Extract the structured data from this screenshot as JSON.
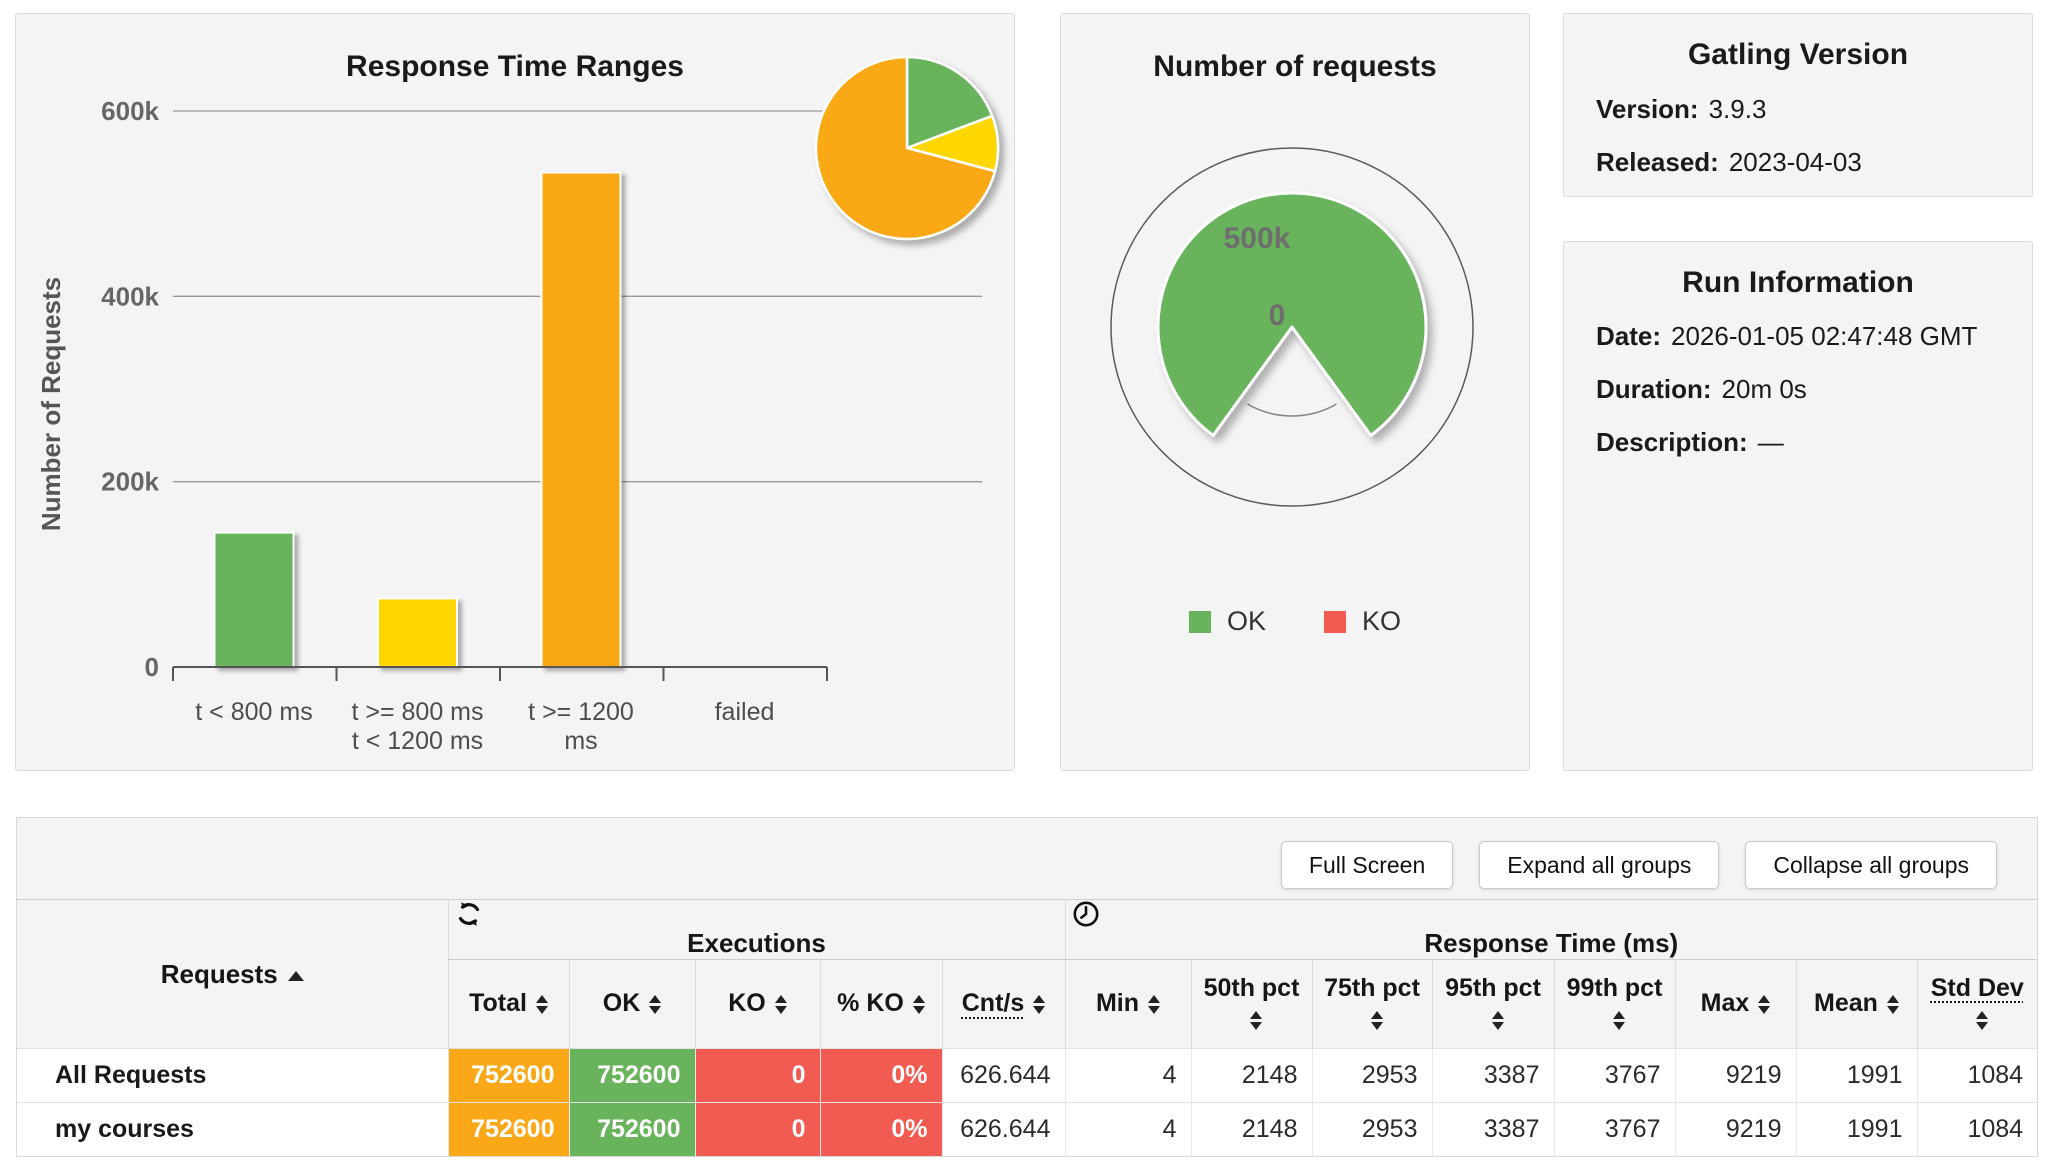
{
  "colors": {
    "green": "#6ab35d",
    "yellow": "#ffd705",
    "orange": "#fba818",
    "red": "#f15b52",
    "grid": "#9a9a9a",
    "axis": "#555555"
  },
  "chart_data": [
    {
      "type": "bar",
      "title": "Response Time Ranges",
      "ylabel": "Number of Requests",
      "categories": [
        "t < 800 ms",
        "t >= 800 ms\nt < 1200 ms",
        "t >= 1200\nms",
        "failed"
      ],
      "values": [
        145000,
        74000,
        533600,
        0
      ],
      "colors": [
        "#6ab35d",
        "#ffd705",
        "#fba818",
        "#f15b52"
      ],
      "ylim": [
        0,
        600000
      ],
      "yticks": [
        [
          "0",
          0
        ],
        [
          "200k",
          200000
        ],
        [
          "400k",
          400000
        ],
        [
          "600k",
          600000
        ]
      ],
      "grid": true,
      "legend_position": "none"
    },
    {
      "type": "pie",
      "labels": [
        "t < 800 ms",
        "t >= 800 ms t < 1200 ms",
        "t >= 1200 ms"
      ],
      "values": [
        145000,
        74000,
        533600
      ],
      "colors": [
        "#6ab35d",
        "#ffd705",
        "#fba818"
      ]
    },
    {
      "type": "gauge",
      "title": "Number of requests",
      "ok": 752600,
      "ko": 0,
      "axis_labels": [
        "500k",
        "0"
      ],
      "legend": [
        "OK",
        "KO"
      ],
      "colors": {
        "ok": "#6ab35d",
        "ko": "#f15b52"
      }
    }
  ],
  "panels": {
    "version": {
      "title": "Gatling Version",
      "rows": [
        {
          "label": "Version:",
          "value": "3.9.3"
        },
        {
          "label": "Released:",
          "value": "2023-04-03"
        }
      ]
    },
    "run": {
      "title": "Run Information",
      "rows": [
        {
          "label": "Date:",
          "value": "2026-01-05 02:47:48 GMT"
        },
        {
          "label": "Duration:",
          "value": "20m 0s"
        },
        {
          "label": "Description:",
          "value": "—"
        }
      ]
    }
  },
  "toolbar": {
    "buttons": [
      "Full Screen",
      "Expand all groups",
      "Collapse all groups"
    ]
  },
  "table": {
    "requests_header": "Requests",
    "group_headers": [
      {
        "label": "Executions",
        "icon": "refresh-icon"
      },
      {
        "label": "Response Time (ms)",
        "icon": "clock-icon"
      }
    ],
    "exec_columns": [
      "Total",
      "OK",
      "KO",
      "% KO",
      "Cnt/s"
    ],
    "rt_columns": [
      "Min",
      "50th pct",
      "75th pct",
      "95th pct",
      "99th pct",
      "Max",
      "Mean",
      "Std Dev"
    ],
    "rows": [
      {
        "name": "All Requests",
        "total": "752600",
        "ok": "752600",
        "ko": "0",
        "ko_pct": "0%",
        "cnts": "626.644",
        "min": "4",
        "p50": "2148",
        "p75": "2953",
        "p95": "3387",
        "p99": "3767",
        "max": "9219",
        "mean": "1991",
        "stddev": "1084"
      },
      {
        "name": "my courses",
        "total": "752600",
        "ok": "752600",
        "ko": "0",
        "ko_pct": "0%",
        "cnts": "626.644",
        "min": "4",
        "p50": "2148",
        "p75": "2953",
        "p95": "3387",
        "p99": "3767",
        "max": "9219",
        "mean": "1991",
        "stddev": "1084"
      }
    ]
  }
}
